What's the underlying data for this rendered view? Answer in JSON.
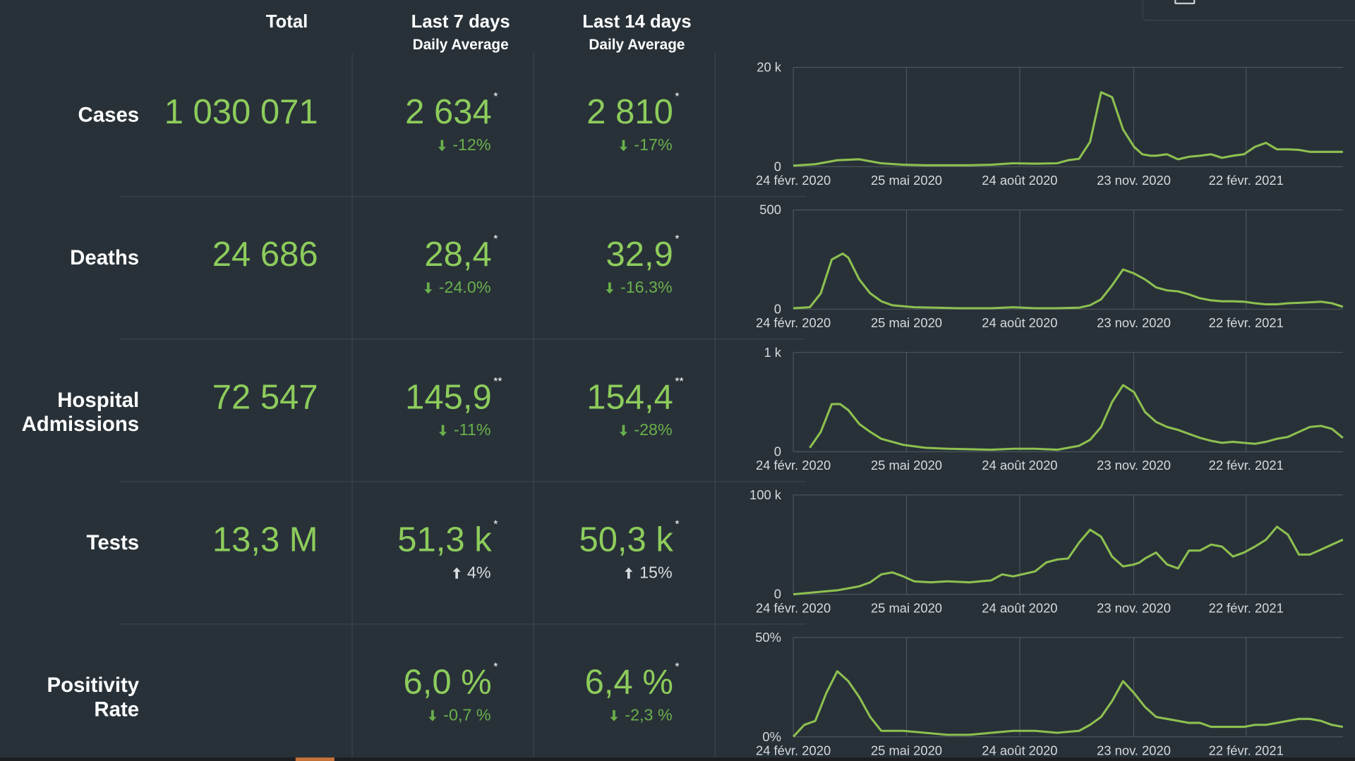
{
  "headers": {
    "total": "Total",
    "last7": "Last 7 days",
    "last7_sub": "Daily Average",
    "last14": "Last 14 days",
    "last14_sub": "Daily Average"
  },
  "rows": [
    {
      "label": "Cases",
      "total": "1 030 071",
      "last7": "2 634",
      "last7_note": "*",
      "last7_change": "-12%",
      "last7_dir": "down",
      "last14": "2 810",
      "last14_note": "*",
      "last14_change": "-17%",
      "last14_dir": "down"
    },
    {
      "label": "Deaths",
      "total": "24 686",
      "last7": "28,4",
      "last7_note": "*",
      "last7_change": "-24.0%",
      "last7_dir": "down",
      "last14": "32,9",
      "last14_note": "*",
      "last14_change": "-16.3%",
      "last14_dir": "down"
    },
    {
      "label_line1": "Hospital",
      "label_line2": "Admissions",
      "total": "72 547",
      "last7": "145,9",
      "last7_note": "**",
      "last7_change": "-11%",
      "last7_dir": "down",
      "last14": "154,4",
      "last14_note": "**",
      "last14_change": "-28%",
      "last14_dir": "down"
    },
    {
      "label": "Tests",
      "total": "13,3 M",
      "last7": "51,3 k",
      "last7_note": "*",
      "last7_change": "4%",
      "last7_dir": "up",
      "last14": "50,3 k",
      "last14_note": "*",
      "last14_change": "15%",
      "last14_dir": "up"
    },
    {
      "label": "Positivity Rate",
      "total": "",
      "last7": "6,0 %",
      "last7_note": "*",
      "last7_change": "-0,7 %",
      "last7_dir": "down",
      "last14": "6,4 %",
      "last14_note": "*",
      "last14_change": "-2,3 %",
      "last14_dir": "down"
    }
  ],
  "colors": {
    "background": "#283138",
    "value_green": "#8dcc5c",
    "change_down": "#6ab04c",
    "change_up": "#d8dde1",
    "line": "#8dc050",
    "grid": "#4b555c",
    "axis_text": "#d6dade"
  },
  "icons": {
    "down": "down-arrow-icon",
    "up": "up-arrow-icon"
  },
  "chart_data": [
    {
      "type": "line",
      "metric": "Cases",
      "x_ticks": [
        "24 févr. 2020",
        "25 mai 2020",
        "24 août 2020",
        "23 nov. 2020",
        "22 févr. 2021"
      ],
      "y_ticks": [
        "0",
        "20 k"
      ],
      "ylim": [
        0,
        20000
      ],
      "grid": true,
      "x": [
        0,
        0.04,
        0.08,
        0.12,
        0.16,
        0.2,
        0.24,
        0.28,
        0.32,
        0.36,
        0.4,
        0.44,
        0.48,
        0.5,
        0.52,
        0.54,
        0.56,
        0.58,
        0.6,
        0.62,
        0.635,
        0.65,
        0.66,
        0.68,
        0.7,
        0.72,
        0.74,
        0.76,
        0.78,
        0.8,
        0.82,
        0.84,
        0.86,
        0.88,
        0.9,
        0.92,
        0.94,
        0.96,
        0.98,
        1.0
      ],
      "values": [
        200,
        500,
        1300,
        1500,
        700,
        400,
        300,
        300,
        300,
        400,
        700,
        600,
        700,
        1300,
        1600,
        5000,
        15000,
        14000,
        7500,
        4000,
        2500,
        2200,
        2200,
        2500,
        1500,
        2000,
        2200,
        2500,
        1800,
        2200,
        2500,
        4000,
        4800,
        3500,
        3500,
        3400,
        3000,
        3000,
        3000,
        3000
      ]
    },
    {
      "type": "line",
      "metric": "Deaths",
      "x_ticks": [
        "24 févr. 2020",
        "25 mai 2020",
        "24 août 2020",
        "23 nov. 2020",
        "22 févr. 2021"
      ],
      "y_ticks": [
        "0",
        "500"
      ],
      "ylim": [
        0,
        500
      ],
      "grid": true,
      "x": [
        0,
        0.03,
        0.05,
        0.07,
        0.09,
        0.1,
        0.12,
        0.14,
        0.16,
        0.18,
        0.22,
        0.26,
        0.3,
        0.36,
        0.4,
        0.44,
        0.48,
        0.52,
        0.54,
        0.56,
        0.58,
        0.6,
        0.62,
        0.64,
        0.66,
        0.68,
        0.7,
        0.72,
        0.74,
        0.76,
        0.78,
        0.8,
        0.82,
        0.84,
        0.86,
        0.88,
        0.9,
        0.92,
        0.94,
        0.96,
        0.98,
        1.0
      ],
      "values": [
        5,
        10,
        80,
        250,
        280,
        260,
        150,
        80,
        40,
        20,
        10,
        8,
        5,
        5,
        10,
        5,
        5,
        8,
        20,
        50,
        120,
        200,
        180,
        150,
        110,
        95,
        90,
        75,
        55,
        45,
        40,
        40,
        38,
        30,
        25,
        25,
        30,
        32,
        35,
        38,
        30,
        12
      ]
    },
    {
      "type": "line",
      "metric": "Hospital Admissions",
      "x_ticks": [
        "24 févr. 2020",
        "25 mai 2020",
        "24 août 2020",
        "23 nov. 2020",
        "22 févr. 2021"
      ],
      "y_ticks": [
        "0",
        "1 k"
      ],
      "ylim": [
        0,
        1000
      ],
      "grid": true,
      "x": [
        0.03,
        0.05,
        0.07,
        0.085,
        0.1,
        0.12,
        0.14,
        0.16,
        0.2,
        0.24,
        0.28,
        0.32,
        0.36,
        0.4,
        0.44,
        0.48,
        0.52,
        0.54,
        0.56,
        0.58,
        0.6,
        0.62,
        0.64,
        0.66,
        0.68,
        0.7,
        0.72,
        0.74,
        0.76,
        0.78,
        0.8,
        0.82,
        0.84,
        0.86,
        0.88,
        0.9,
        0.92,
        0.94,
        0.96,
        0.98,
        1.0
      ],
      "values": [
        40,
        200,
        480,
        480,
        420,
        280,
        200,
        130,
        70,
        40,
        30,
        25,
        20,
        30,
        30,
        20,
        60,
        120,
        250,
        500,
        670,
        600,
        400,
        300,
        250,
        220,
        180,
        140,
        110,
        90,
        100,
        90,
        80,
        100,
        130,
        150,
        200,
        250,
        260,
        230,
        140
      ]
    },
    {
      "type": "line",
      "metric": "Tests",
      "x_ticks": [
        "24 févr. 2020",
        "25 mai 2020",
        "24 août 2020",
        "23 nov. 2020",
        "22 févr. 2021"
      ],
      "y_ticks": [
        "0",
        "100 k"
      ],
      "ylim": [
        0,
        100000
      ],
      "grid": true,
      "x": [
        0,
        0.04,
        0.08,
        0.12,
        0.14,
        0.16,
        0.18,
        0.2,
        0.22,
        0.25,
        0.28,
        0.32,
        0.36,
        0.38,
        0.4,
        0.44,
        0.46,
        0.48,
        0.5,
        0.52,
        0.54,
        0.56,
        0.58,
        0.6,
        0.62,
        0.63,
        0.64,
        0.66,
        0.68,
        0.7,
        0.72,
        0.74,
        0.76,
        0.78,
        0.8,
        0.82,
        0.84,
        0.86,
        0.88,
        0.9,
        0.92,
        0.94,
        0.96,
        0.98,
        1.0
      ],
      "values": [
        0,
        2000,
        4000,
        8000,
        12000,
        20000,
        22000,
        18000,
        13000,
        12000,
        13000,
        12000,
        14000,
        20000,
        18000,
        23000,
        32000,
        35000,
        36000,
        52000,
        65000,
        58000,
        38000,
        28000,
        30000,
        32000,
        36000,
        42000,
        30000,
        26000,
        44000,
        44000,
        50000,
        48000,
        38000,
        42000,
        48000,
        55000,
        68000,
        60000,
        40000,
        40000,
        45000,
        50000,
        55000
      ]
    },
    {
      "type": "line",
      "metric": "Positivity Rate",
      "x_ticks": [
        "24 févr. 2020",
        "25 mai 2020",
        "24 août 2020",
        "23 nov. 2020",
        "22 févr. 2021"
      ],
      "y_ticks": [
        "0%",
        "50%"
      ],
      "ylim": [
        0,
        50
      ],
      "grid": true,
      "x": [
        0,
        0.02,
        0.04,
        0.06,
        0.08,
        0.1,
        0.12,
        0.14,
        0.16,
        0.2,
        0.24,
        0.28,
        0.32,
        0.36,
        0.4,
        0.44,
        0.48,
        0.52,
        0.54,
        0.56,
        0.58,
        0.6,
        0.62,
        0.64,
        0.66,
        0.68,
        0.7,
        0.72,
        0.74,
        0.76,
        0.78,
        0.8,
        0.82,
        0.84,
        0.86,
        0.88,
        0.9,
        0.92,
        0.94,
        0.96,
        0.98,
        1.0
      ],
      "values": [
        0,
        6,
        8,
        22,
        33,
        28,
        20,
        10,
        3,
        3,
        2,
        1,
        1,
        2,
        3,
        3,
        2,
        3,
        6,
        10,
        18,
        28,
        22,
        15,
        10,
        9,
        8,
        7,
        7,
        5,
        5,
        5,
        5,
        6,
        6,
        7,
        8,
        9,
        9,
        8,
        6,
        5
      ]
    }
  ]
}
